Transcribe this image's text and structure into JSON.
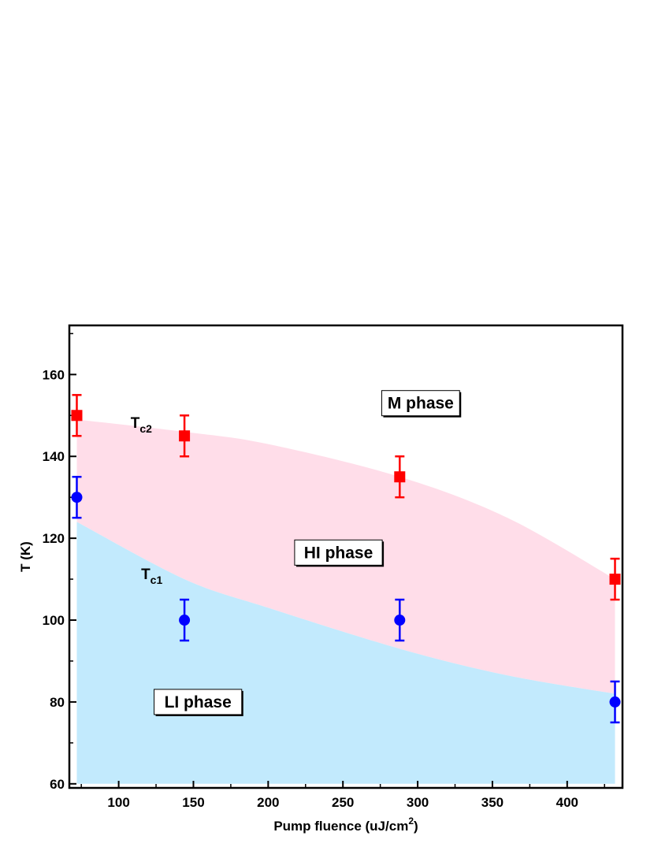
{
  "chart_data": {
    "type": "scatter",
    "title": "",
    "xlabel": "Pump fluence (uJ/cm",
    "xlabel_sup": "2",
    "xlabel_close": ")",
    "ylabel": "T (K)",
    "xlim": [
      67,
      437
    ],
    "ylim": [
      59,
      172
    ],
    "x_ticks": [
      100,
      150,
      200,
      250,
      300,
      350,
      400
    ],
    "y_ticks": [
      60,
      80,
      100,
      120,
      140,
      160
    ],
    "grid": false,
    "series": [
      {
        "key": "tc2",
        "color": "#ff0000",
        "marker": "square",
        "x": [
          72,
          144,
          288,
          432
        ],
        "y": [
          150,
          145,
          135,
          110
        ],
        "err": [
          5,
          5,
          5,
          5
        ]
      },
      {
        "key": "tc1",
        "color": "#0000ff",
        "marker": "circle",
        "x": [
          72,
          144,
          288,
          432
        ],
        "y": [
          130,
          100,
          100,
          80
        ],
        "err": [
          5,
          5,
          5,
          5
        ]
      }
    ],
    "regions": [
      {
        "key": "hi",
        "color": "#ffdde9",
        "x_range": [
          72,
          432
        ],
        "upper": [
          [
            72,
            149
          ],
          [
            144,
            146
          ],
          [
            200,
            143
          ],
          [
            288,
            135
          ],
          [
            360,
            125
          ],
          [
            432,
            110
          ]
        ],
        "lower_ref": "li_upper"
      },
      {
        "key": "li",
        "color": "#c2eafd",
        "x_range": [
          72,
          432
        ],
        "upper": [
          [
            72,
            124
          ],
          [
            144,
            110
          ],
          [
            200,
            103
          ],
          [
            288,
            93
          ],
          [
            360,
            86.5
          ],
          [
            432,
            82
          ]
        ],
        "floor": 60
      }
    ],
    "curve_labels": [
      {
        "key": "tc2",
        "main": "T",
        "sub": "c2",
        "x": 108,
        "y": 147
      },
      {
        "key": "tc1",
        "main": "T",
        "sub": "c1",
        "x": 115,
        "y": 110
      }
    ],
    "annotations": [
      {
        "key": "m",
        "text": "M phase",
        "x": 302,
        "y": 153
      },
      {
        "key": "hi",
        "text": "HI phase",
        "x": 247,
        "y": 116.5
      },
      {
        "key": "li",
        "text": "LI phase",
        "x": 153,
        "y": 80
      }
    ]
  }
}
